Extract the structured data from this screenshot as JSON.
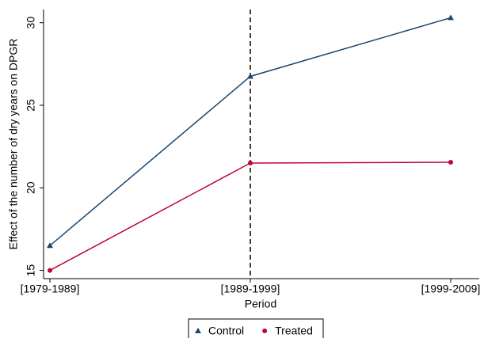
{
  "chart_data": {
    "type": "line",
    "y_label": "Effect of the number of dry years on DPGR",
    "x_label": "Period",
    "categories": [
      "[1979-1989]",
      "[1989-1999]",
      "[1999-2009]"
    ],
    "series": [
      {
        "name": "Control",
        "color": "#1a476f",
        "marker": "triangle",
        "values": [
          16.5,
          26.75,
          30.3
        ]
      },
      {
        "name": "Treated",
        "color": "#c10534",
        "marker": "circle",
        "values": [
          15,
          21.5,
          21.55
        ]
      }
    ],
    "ylim": [
      14.5,
      30.8
    ],
    "yticks": [
      15,
      20,
      25,
      30
    ],
    "grid": false
  }
}
